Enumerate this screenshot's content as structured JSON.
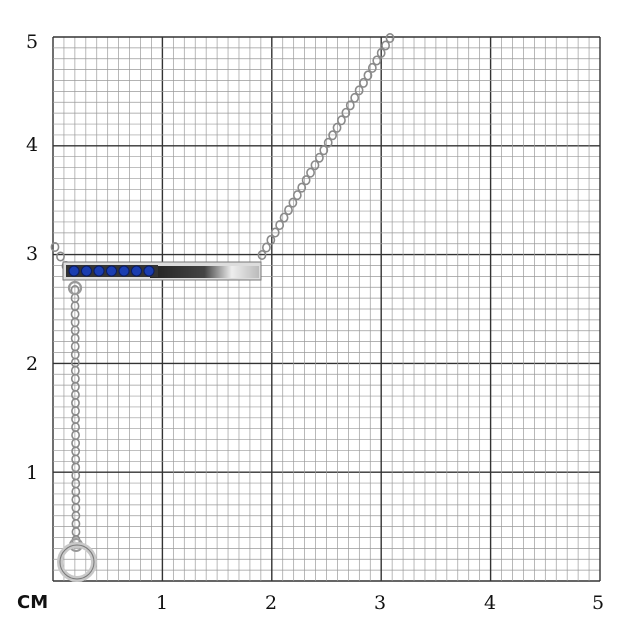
{
  "scale": {
    "unit_label": "CM",
    "x_ticks": [
      "1",
      "2",
      "3",
      "4",
      "5"
    ],
    "y_ticks": [
      "1",
      "2",
      "3",
      "4",
      "5"
    ],
    "range_cm": [
      0,
      5
    ],
    "minor_divisions_per_cm": 10
  },
  "product": {
    "type": "bar necklace with chain and spring-ring clasp",
    "stone_count": 7,
    "colors": {
      "grid_major": "#333333",
      "grid_minor": "#9a9a9a",
      "metal": "#c8c8c8",
      "stone": "#1a3db0"
    }
  }
}
